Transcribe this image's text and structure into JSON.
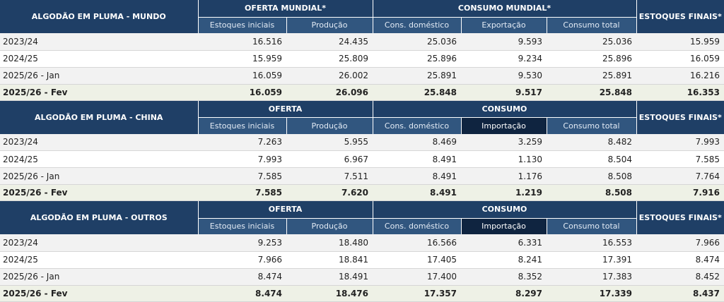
{
  "sections": [
    {
      "title": "ALGODÃO EM PLUMA - MUNDO",
      "group1": "OFERTA MUNDIAL*",
      "group2": "CONSUMO MUNDIAL*",
      "estoques": "ESTOQUES FINAIS*",
      "subheaders": [
        "Estoques iniciais",
        "Produção",
        "Cons. doméstico",
        "Exportação",
        "Consumo total"
      ],
      "rows": [
        {
          "label": "2023/24",
          "values": [
            "16.516",
            "24.435",
            "25.036",
            "9.593",
            "25.036",
            "15.959"
          ]
        },
        {
          "label": "2024/25",
          "values": [
            "15.959",
            "25.809",
            "25.896",
            "9.234",
            "25.896",
            "16.059"
          ]
        },
        {
          "label": "2025/26 - Jan",
          "values": [
            "16.059",
            "26.002",
            "25.891",
            "9.530",
            "25.891",
            "16.216"
          ]
        },
        {
          "label": "2025/26 - Fev",
          "values": [
            "16.059",
            "26.096",
            "25.848",
            "9.517",
            "25.848",
            "16.353"
          ]
        }
      ]
    },
    {
      "title": "ALGODÃO EM PLUMA - CHINA",
      "group1": "OFERTA",
      "group2": "CONSUMO",
      "estoques": "ESTOQUES FINAIS*",
      "subheaders": [
        "Estoques iniciais",
        "Produção",
        "Cons. doméstico",
        "Importação",
        "Consumo total"
      ],
      "rows": [
        {
          "label": "2023/24",
          "values": [
            "7.263",
            "5.955",
            "8.469",
            "3.259",
            "8.482",
            "7.993"
          ]
        },
        {
          "label": "2024/25",
          "values": [
            "7.993",
            "6.967",
            "8.491",
            "1.130",
            "8.504",
            "7.585"
          ]
        },
        {
          "label": "2025/26 - Jan",
          "values": [
            "7.585",
            "7.511",
            "8.491",
            "1.176",
            "8.508",
            "7.764"
          ]
        },
        {
          "label": "2025/26 - Fev",
          "values": [
            "7.585",
            "7.620",
            "8.491",
            "1.219",
            "8.508",
            "7.916"
          ]
        }
      ]
    },
    {
      "title": "ALGODÃO EM PLUMA - OUTROS",
      "group1": "OFERTA",
      "group2": "CONSUMO",
      "estoques": "ESTOQUES FINAIS*",
      "subheaders": [
        "Estoques iniciais",
        "Produção",
        "Cons. doméstico",
        "Importação",
        "Consumo total"
      ],
      "rows": [
        {
          "label": "2023/24",
          "values": [
            "9.253",
            "18.480",
            "16.566",
            "6.331",
            "16.553",
            "7.966"
          ]
        },
        {
          "label": "2024/25",
          "values": [
            "7.966",
            "18.841",
            "17.405",
            "8.241",
            "17.391",
            "8.474"
          ]
        },
        {
          "label": "2025/26 - Jan",
          "values": [
            "8.474",
            "18.491",
            "17.400",
            "8.352",
            "17.383",
            "8.452"
          ]
        },
        {
          "label": "2025/26 - Fev",
          "values": [
            "8.474",
            "18.476",
            "17.357",
            "8.297",
            "17.339",
            "8.437"
          ]
        }
      ]
    }
  ]
}
